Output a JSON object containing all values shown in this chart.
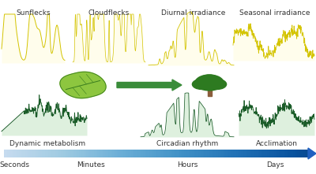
{
  "bg_color": "#ffffff",
  "top_labels": [
    "Sunflecks",
    "Cloudflecks",
    "Diurnal irradiance",
    "Seasonal irradiance"
  ],
  "bottom_labels": [
    "Dynamic metabolism",
    "Circadian rhythm",
    "Acclimation"
  ],
  "timeline_labels": [
    "Seconds",
    "Minutes",
    "Hours",
    "Days"
  ],
  "yellow_line": "#d4c400",
  "yellow_fill": "#fffde0",
  "green_dark": "#1a5c28",
  "green_mid": "#2d7a3e",
  "arrow_green": "#3a8c3a",
  "leaf_bright": "#8dc63f",
  "leaf_dark": "#3a7d1e",
  "leaf_mid": "#5aaa28",
  "tree_green": "#2d7a20",
  "tree_trunk": "#8B5E3C",
  "timeline_left": "#aecde8",
  "timeline_right": "#2060c0",
  "text_color": "#333333"
}
